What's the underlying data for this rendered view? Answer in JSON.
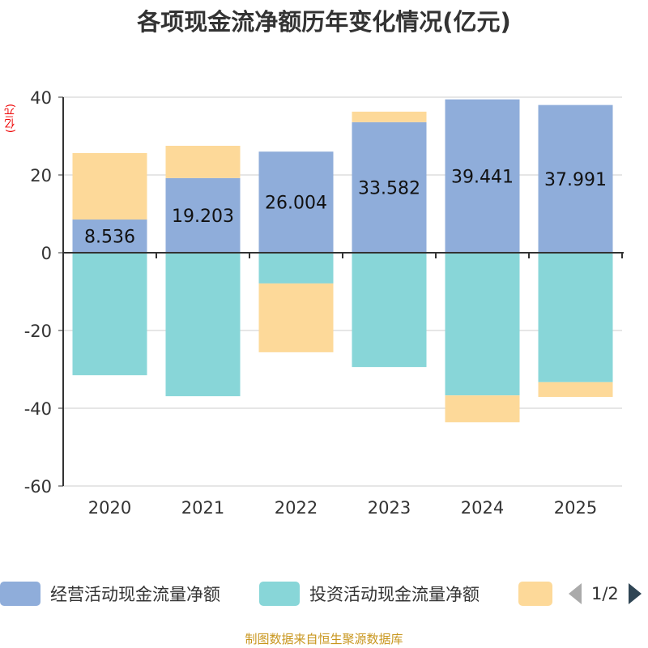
{
  "chart_data": {
    "type": "bar",
    "stacked": true,
    "title": "各项现金流净额历年变化情况(亿元)",
    "ylabel": "(亿元)",
    "ylim": [
      -60,
      40
    ],
    "yticks": [
      -60,
      -40,
      -20,
      0,
      20,
      40
    ],
    "grid": true,
    "legend_position": "bottom",
    "categories": [
      "2020",
      "2021",
      "2022",
      "2023",
      "2024",
      "2025"
    ],
    "series": [
      {
        "name": "经营活动现金流量净额",
        "color": "#8fadda",
        "values": [
          8.536,
          19.203,
          26.004,
          33.582,
          39.441,
          37.991
        ],
        "labels": [
          "8.536",
          "19.203",
          "26.004",
          "33.582",
          "39.441",
          "37.991"
        ]
      },
      {
        "name": "投资活动现金流量净额",
        "color": "#88d6d8",
        "values": [
          -31.5,
          -36.9,
          -7.9,
          -29.4,
          -36.7,
          -33.3
        ]
      },
      {
        "name": "",
        "color": "#fdd999",
        "values": [
          17.1,
          8.3,
          -17.7,
          2.7,
          -6.9,
          -3.8
        ]
      }
    ]
  },
  "legend": {
    "pager": "1/2"
  },
  "source": "制图数据来自恒生聚源数据库"
}
